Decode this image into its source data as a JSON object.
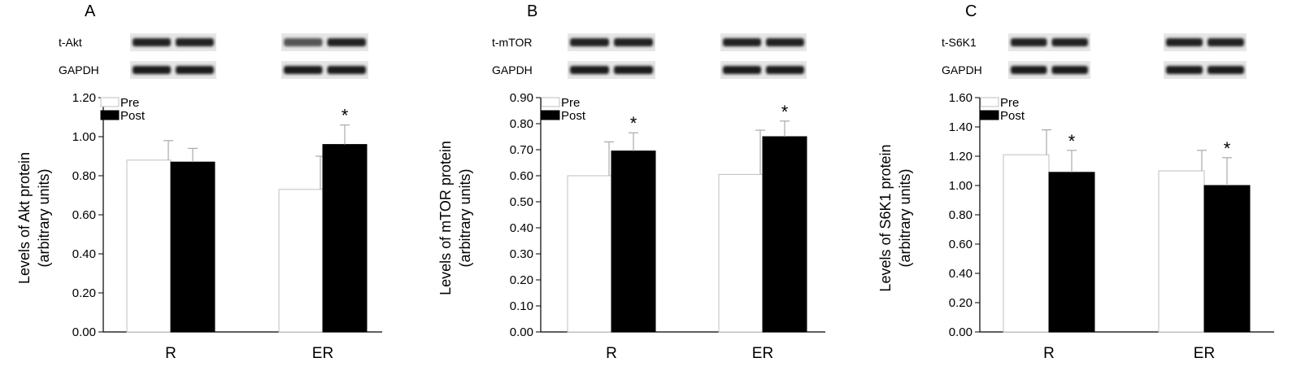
{
  "chart_data": [
    {
      "type": "bar",
      "panel": "A",
      "blot_labels": [
        "t-Akt",
        "GAPDH"
      ],
      "categories": [
        "R",
        "ER"
      ],
      "series": [
        {
          "name": "Pre",
          "values": [
            0.88,
            0.73
          ],
          "errors": [
            0.1,
            0.17
          ],
          "color": "#ffffff"
        },
        {
          "name": "Post",
          "values": [
            0.87,
            0.96
          ],
          "errors": [
            0.07,
            0.1
          ],
          "color": "#000000"
        }
      ],
      "significance": [
        [
          false,
          false
        ],
        [
          false,
          true
        ]
      ],
      "ylabel": "Levels of Akt protein (arbitrary units)",
      "ylabel_lines": [
        "Levels of Akt protein",
        "(arbitrary units)"
      ],
      "ylim": [
        0,
        1.2
      ],
      "yticks": [
        "0.00",
        "0.20",
        "0.40",
        "0.60",
        "0.80",
        "1.00",
        "1.20"
      ],
      "legend": "top-left"
    },
    {
      "type": "bar",
      "panel": "B",
      "blot_labels": [
        "t-mTOR",
        "GAPDH"
      ],
      "categories": [
        "R",
        "ER"
      ],
      "series": [
        {
          "name": "Pre",
          "values": [
            0.6,
            0.605
          ],
          "errors": [
            0.13,
            0.17
          ],
          "color": "#ffffff"
        },
        {
          "name": "Post",
          "values": [
            0.695,
            0.75
          ],
          "errors": [
            0.07,
            0.06
          ],
          "color": "#000000"
        }
      ],
      "significance": [
        [
          false,
          false
        ],
        [
          true,
          true
        ]
      ],
      "ylabel": "Levels of mTOR protein (arbitrary units)",
      "ylabel_lines": [
        "Levels of mTOR protein",
        "(arbitrary units)"
      ],
      "ylim": [
        0,
        0.9
      ],
      "yticks": [
        "0.00",
        "0.10",
        "0.20",
        "0.30",
        "0.40",
        "0.50",
        "0.60",
        "0.70",
        "0.80",
        "0.90"
      ],
      "legend": "top-left"
    },
    {
      "type": "bar",
      "panel": "C",
      "blot_labels": [
        "t-S6K1",
        "GAPDH"
      ],
      "categories": [
        "R",
        "ER"
      ],
      "series": [
        {
          "name": "Pre",
          "values": [
            1.21,
            1.1
          ],
          "errors": [
            0.17,
            0.14
          ],
          "color": "#ffffff"
        },
        {
          "name": "Post",
          "values": [
            1.09,
            1.0
          ],
          "errors": [
            0.15,
            0.19
          ],
          "color": "#000000"
        }
      ],
      "significance": [
        [
          false,
          false
        ],
        [
          true,
          true
        ]
      ],
      "ylabel": "Levels of S6K1 protein (arbitrary units)",
      "ylabel_lines": [
        "Levels of S6K1 protein",
        "(arbitrary units)"
      ],
      "ylim": [
        0,
        1.6
      ],
      "yticks": [
        "0.00",
        "0.20",
        "0.40",
        "0.60",
        "0.80",
        "1.00",
        "1.20",
        "1.40",
        "1.60"
      ],
      "legend": "top-left"
    }
  ]
}
